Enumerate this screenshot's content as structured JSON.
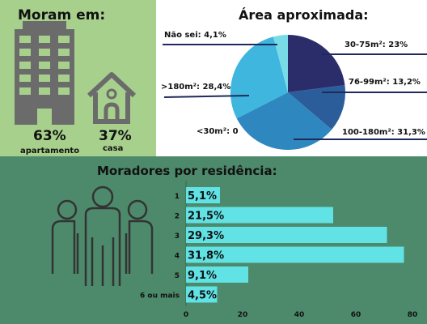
{
  "housing": {
    "title": "Moram em:",
    "apartment": {
      "percent": "63%",
      "label": "apartamento"
    },
    "house": {
      "percent": "37%",
      "label": "casa"
    }
  },
  "area": {
    "title": "Área aproximada:",
    "labels": {
      "dont_know": "Não sei: 4,1%",
      "over180": ">180m²: 28,4%",
      "under30": "<30m²: 0",
      "r30_75": "30-75m²: 23%",
      "r76_99": "76-99m²: 13,2%",
      "r100_180": "100-180m²: 31,3%"
    }
  },
  "residents": {
    "title": "Moradores por residência:",
    "bar_color": "#61e2e5"
  },
  "chart_data": [
    {
      "type": "pie",
      "title": "Área aproximada:",
      "slices": [
        {
          "label": "30-75m²",
          "value": 23,
          "color": "#2b2d6b"
        },
        {
          "label": "76-99m²",
          "value": 13.2,
          "color": "#2c5d9b"
        },
        {
          "label": "100-180m²",
          "value": 31.3,
          "color": "#2e87bf"
        },
        {
          "label": "<30m²",
          "value": 0,
          "color": "#3aa3cf"
        },
        {
          "label": ">180m²",
          "value": 28.4,
          "color": "#3fb6dd"
        },
        {
          "label": "Não sei",
          "value": 4.1,
          "color": "#78dbe6"
        }
      ]
    },
    {
      "type": "bar",
      "orientation": "horizontal",
      "title": "Moradores por residência:",
      "categories": [
        "1",
        "2",
        "3",
        "4",
        "5",
        "6 ou mais"
      ],
      "values": [
        5.1,
        21.5,
        29.3,
        31.8,
        9.1,
        4.5
      ],
      "value_labels": [
        "5,1%",
        "21,5%",
        "29,3%",
        "31,8%",
        "9,1%",
        "4,5%"
      ],
      "bar_lengths": [
        12,
        52,
        71,
        77,
        22,
        11
      ],
      "xlim": [
        0,
        80
      ],
      "xticks": [
        "0",
        "20",
        "40",
        "60",
        "80"
      ]
    }
  ]
}
